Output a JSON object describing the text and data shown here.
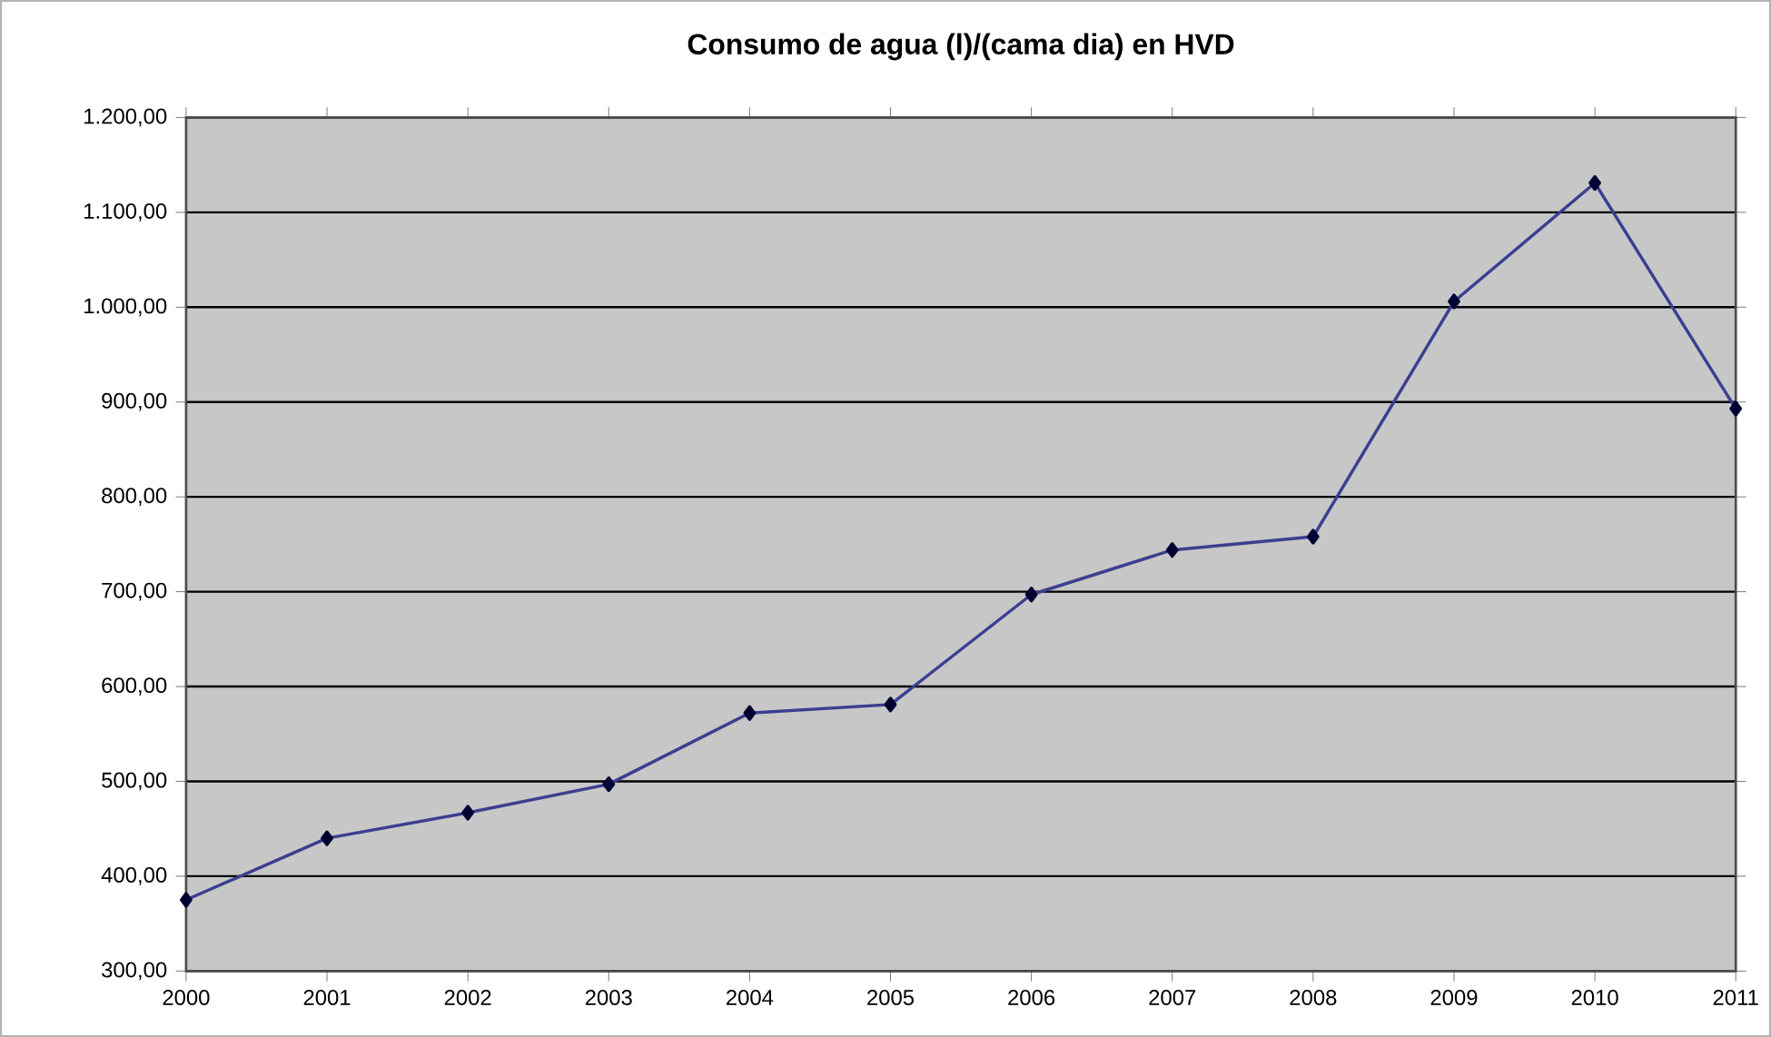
{
  "chart_data": {
    "type": "line",
    "title": "Consumo de agua (l)/(cama dia) en HVD",
    "categories": [
      "2000",
      "2001",
      "2002",
      "2003",
      "2004",
      "2005",
      "2006",
      "2007",
      "2008",
      "2009",
      "2010",
      "2011"
    ],
    "series": [
      {
        "color": "#3b3f8f",
        "values": [
          375,
          440,
          467,
          497,
          572,
          581,
          697,
          744,
          758,
          1006,
          1131,
          893
        ]
      }
    ],
    "ylim": [
      300,
      1200
    ],
    "yticks": [
      {
        "value": 300,
        "label": "300,00"
      },
      {
        "value": 400,
        "label": "400,00"
      },
      {
        "value": 500,
        "label": "500,00"
      },
      {
        "value": 600,
        "label": "600,00"
      },
      {
        "value": 700,
        "label": "700,00"
      },
      {
        "value": 800,
        "label": "800,00"
      },
      {
        "value": 900,
        "label": "900,00"
      },
      {
        "value": 1000,
        "label": "1.000,00"
      },
      {
        "value": 1100,
        "label": "1.100,00"
      },
      {
        "value": 1200,
        "label": "1.200,00"
      }
    ],
    "grid": "y",
    "marker": "diamond",
    "line_style": "solid"
  }
}
